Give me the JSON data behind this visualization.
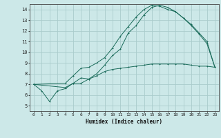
{
  "xlabel": "Humidex (Indice chaleur)",
  "bg_color": "#cce8e8",
  "grid_color": "#aacccc",
  "line_color": "#1a6b5a",
  "xlim": [
    -0.5,
    23.5
  ],
  "ylim": [
    4.5,
    14.5
  ],
  "xticks": [
    0,
    1,
    2,
    3,
    4,
    5,
    6,
    7,
    8,
    9,
    10,
    11,
    12,
    13,
    14,
    15,
    16,
    17,
    18,
    19,
    20,
    21,
    22,
    23
  ],
  "yticks": [
    5,
    6,
    7,
    8,
    9,
    10,
    11,
    12,
    13,
    14
  ],
  "line1_x": [
    0,
    1,
    2,
    3,
    4,
    5,
    6,
    7,
    8,
    9,
    10,
    11,
    12,
    13,
    14,
    15,
    16,
    17,
    18,
    19,
    20,
    21,
    22,
    23
  ],
  "line1_y": [
    7.0,
    6.4,
    5.4,
    6.4,
    6.6,
    7.1,
    7.1,
    7.5,
    7.8,
    8.2,
    8.4,
    8.5,
    8.6,
    8.7,
    8.8,
    8.9,
    8.9,
    8.9,
    8.9,
    8.9,
    8.8,
    8.7,
    8.7,
    8.6
  ],
  "line2_x": [
    0,
    4,
    5,
    6,
    7,
    8,
    9,
    10,
    11,
    12,
    13,
    14,
    15,
    16,
    17,
    18,
    19,
    20,
    21,
    22,
    23
  ],
  "line2_y": [
    7.0,
    7.1,
    7.8,
    8.5,
    8.6,
    9.0,
    9.5,
    10.4,
    11.5,
    12.4,
    13.3,
    14.0,
    14.4,
    14.3,
    14.0,
    13.8,
    13.2,
    12.5,
    11.7,
    10.8,
    8.6
  ],
  "line3_x": [
    0,
    4,
    5,
    6,
    7,
    8,
    9,
    10,
    11,
    12,
    13,
    14,
    15,
    16,
    17,
    18,
    19,
    20,
    21,
    22,
    23
  ],
  "line3_y": [
    7.0,
    6.7,
    7.1,
    7.6,
    7.5,
    8.0,
    8.8,
    9.7,
    10.3,
    11.8,
    12.5,
    13.5,
    14.2,
    14.4,
    14.2,
    13.8,
    13.2,
    12.6,
    11.8,
    11.0,
    8.6
  ]
}
